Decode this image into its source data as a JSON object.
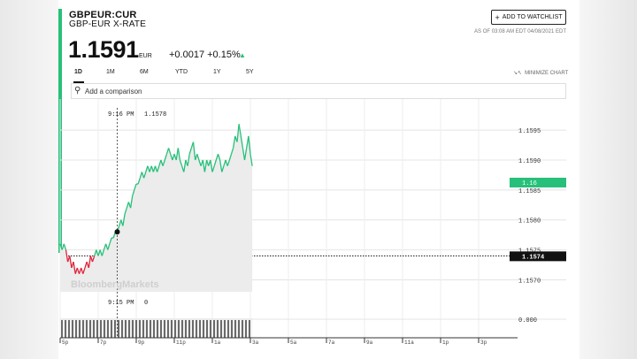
{
  "header": {
    "ticker": "GBPEUR:CUR",
    "pair_name": "GBP-EUR X-RATE",
    "price": "1.1591",
    "currency": "EUR",
    "change": "+0.0017 +0.15%",
    "watchlist_label": "ADD TO WATCHLIST",
    "as_of": "AS OF 03:08 AM EDT 04/08/2021 EDT"
  },
  "tabs": [
    "1D",
    "1M",
    "6M",
    "YTD",
    "1Y",
    "5Y"
  ],
  "active_tab": "1D",
  "minimize_label": "MINIMIZE CHART",
  "search": {
    "placeholder": "Add a comparison"
  },
  "watermark": "BloombergMarkets",
  "colors": {
    "up": "#27c07a",
    "down": "#e0243a",
    "accent": "#27c07a"
  },
  "chart_data": {
    "type": "line",
    "x_ticks": [
      "5p",
      "7p",
      "9p",
      "11p",
      "1a",
      "3a",
      "5a",
      "7a",
      "9a",
      "11a",
      "1p",
      "3p"
    ],
    "y_ticks": [
      "1.1595",
      "1.1590",
      "1.1585",
      "1.1580",
      "1.1575",
      "1.1570"
    ],
    "ylim": [
      1.1568,
      1.1599
    ],
    "previous_close": 1.1574,
    "previous_close_label": "1.1574",
    "current_label": "1.16",
    "crosshair": {
      "time": "9:16 PM",
      "value": "1.1578",
      "volume_time": "9:15 PM",
      "volume_value": "0"
    },
    "volume_label": "0.000",
    "series": [
      {
        "x": [
          0,
          0.1,
          0.2,
          0.3,
          0.4,
          0.5,
          0.6,
          0.7,
          0.8,
          0.9,
          1,
          1.1,
          1.2,
          1.3,
          1.4,
          1.5,
          1.6,
          1.7,
          1.8,
          1.9,
          2,
          2.1,
          2.2,
          2.3,
          2.4,
          2.5,
          2.6,
          2.7,
          2.8,
          2.9,
          3,
          3.1,
          3.2,
          3.3,
          3.4,
          3.5,
          3.6,
          3.7,
          3.8,
          3.9,
          4,
          4.1,
          4.2,
          4.3,
          4.4,
          4.5,
          4.6,
          4.7,
          4.8,
          4.9,
          5,
          5.1,
          5.2,
          5.3,
          5.4,
          5.5,
          5.6,
          5.7,
          5.8,
          5.9,
          6,
          6.1,
          6.2,
          6.3,
          6.4,
          6.5,
          6.6,
          6.7,
          6.8,
          6.9,
          7,
          7.1,
          7.2,
          7.3,
          7.4,
          7.5,
          7.6,
          7.7,
          7.8,
          7.9,
          8,
          8.1,
          8.2,
          8.3,
          8.4,
          8.5,
          8.6,
          8.7,
          8.8,
          8.9,
          9,
          9.1,
          9.2,
          9.3,
          9.4,
          9.5,
          9.6,
          9.7,
          9.8,
          9.9,
          10,
          10.1
        ],
        "y": [
          1.1576,
          1.1575,
          1.1576,
          1.1575,
          1.1573,
          1.1574,
          1.1572,
          1.1573,
          1.1571,
          1.1572,
          1.1571,
          1.1572,
          1.1571,
          1.1572,
          1.1573,
          1.1572,
          1.1574,
          1.1573,
          1.1574,
          1.1575,
          1.1574,
          1.1575,
          1.1574,
          1.1575,
          1.1576,
          1.1575,
          1.1576,
          1.1577,
          1.1577,
          1.1578,
          1.1578,
          1.1579,
          1.158,
          1.1579,
          1.1581,
          1.1582,
          1.1583,
          1.1582,
          1.1584,
          1.1585,
          1.1586,
          1.1586,
          1.1587,
          1.1588,
          1.1587,
          1.1588,
          1.1589,
          1.1588,
          1.1589,
          1.1588,
          1.1589,
          1.1588,
          1.1589,
          1.159,
          1.1589,
          1.159,
          1.1591,
          1.1592,
          1.1591,
          1.159,
          1.1591,
          1.159,
          1.1592,
          1.159,
          1.1589,
          1.1588,
          1.159,
          1.1589,
          1.1591,
          1.1592,
          1.1593,
          1.159,
          1.1591,
          1.159,
          1.1589,
          1.159,
          1.1588,
          1.159,
          1.1589,
          1.159,
          1.1588,
          1.1589,
          1.159,
          1.1591,
          1.159,
          1.1588,
          1.1589,
          1.159,
          1.1589,
          1.159,
          1.1591,
          1.1592,
          1.1594,
          1.1593,
          1.1596,
          1.1594,
          1.1592,
          1.159,
          1.1592,
          1.1594,
          1.1591,
          1.1589
        ]
      }
    ],
    "grid": true
  }
}
